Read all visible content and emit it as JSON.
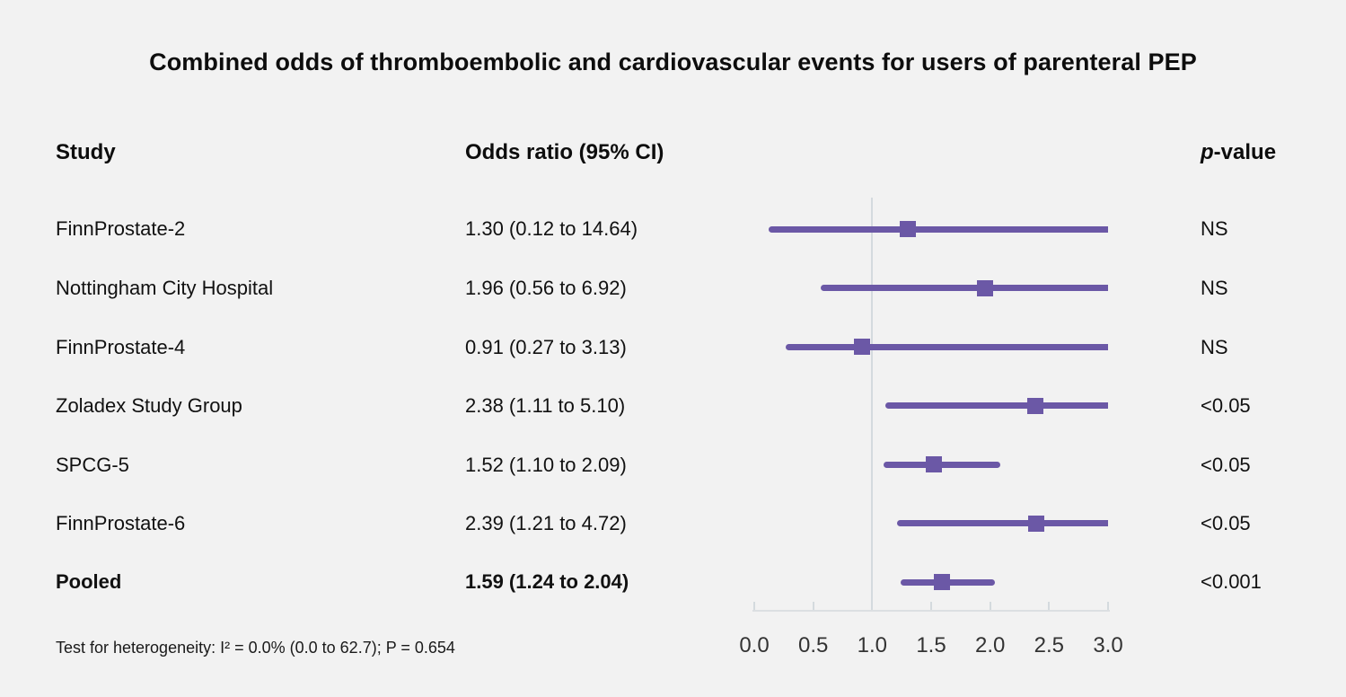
{
  "title": "Combined odds of thromboembolic and cardiovascular events for users of parenteral PEP",
  "columns": {
    "study": "Study",
    "odds_ratio": "Odds ratio (95% CI)",
    "p_value_italic": "p",
    "p_value_suffix": "-value"
  },
  "rows": [
    {
      "study": "FinnProstate-2",
      "or_ci": "1.30 (0.12 to 14.64)",
      "p": "NS"
    },
    {
      "study": "Nottingham City Hospital",
      "or_ci": "1.96 (0.56 to 6.92)",
      "p": "NS"
    },
    {
      "study": "FinnProstate-4",
      "or_ci": "0.91 (0.27 to 3.13)",
      "p": "NS"
    },
    {
      "study": "Zoladex Study Group",
      "or_ci": "2.38 (1.11 to 5.10)",
      "p": "<0.05"
    },
    {
      "study": "SPCG-5",
      "or_ci": "1.52 (1.10 to 2.09)",
      "p": "<0.05"
    },
    {
      "study": "FinnProstate-6",
      "or_ci": "2.39 (1.21 to 4.72)",
      "p": "<0.05"
    },
    {
      "study": "Pooled",
      "or_ci": "1.59 (1.24 to 2.04)",
      "p": "<0.001"
    }
  ],
  "footer": "Test for heterogeneity: I² = 0.0% (0.0 to 62.7); P = 0.654",
  "chart_data": {
    "type": "scatter",
    "subtype": "forest-plot",
    "title": "Combined odds of thromboembolic and cardiovascular events for users of parenteral PEP",
    "xlabel": "Odds ratio",
    "axis": {
      "min": 0.0,
      "max": 3.0,
      "ticks": [
        0.0,
        0.5,
        1.0,
        1.5,
        2.0,
        2.5,
        3.0
      ],
      "tick_labels": [
        "0.0",
        "0.5",
        "1.0",
        "1.5",
        "2.0",
        "2.5",
        "3.0"
      ],
      "reference_line": 1.0,
      "grid": false
    },
    "series": [
      {
        "name": "FinnProstate-2",
        "or": 1.3,
        "ci_low": 0.12,
        "ci_high": 14.64,
        "p": "NS",
        "pooled": false
      },
      {
        "name": "Nottingham City Hospital",
        "or": 1.96,
        "ci_low": 0.56,
        "ci_high": 6.92,
        "p": "NS",
        "pooled": false
      },
      {
        "name": "FinnProstate-4",
        "or": 0.91,
        "ci_low": 0.27,
        "ci_high": 3.13,
        "p": "NS",
        "pooled": false
      },
      {
        "name": "Zoladex Study Group",
        "or": 2.38,
        "ci_low": 1.11,
        "ci_high": 5.1,
        "p": "<0.05",
        "pooled": false
      },
      {
        "name": "SPCG-5",
        "or": 1.52,
        "ci_low": 1.1,
        "ci_high": 2.09,
        "p": "<0.05",
        "pooled": false
      },
      {
        "name": "FinnProstate-6",
        "or": 2.39,
        "ci_low": 1.21,
        "ci_high": 4.72,
        "p": "<0.05",
        "pooled": false
      },
      {
        "name": "Pooled",
        "or": 1.59,
        "ci_low": 1.24,
        "ci_high": 2.04,
        "p": "<0.001",
        "pooled": true
      }
    ],
    "heterogeneity": "Test for heterogeneity: I² = 0.0% (0.0 to 62.7); P = 0.654",
    "colors": {
      "line": "#6b58a6",
      "marker": "#6b58a6",
      "axis_line": "#dcdfe2",
      "tick": "#d4dade",
      "reference_line": "#d4dade",
      "background": "#f2f2f2"
    }
  }
}
